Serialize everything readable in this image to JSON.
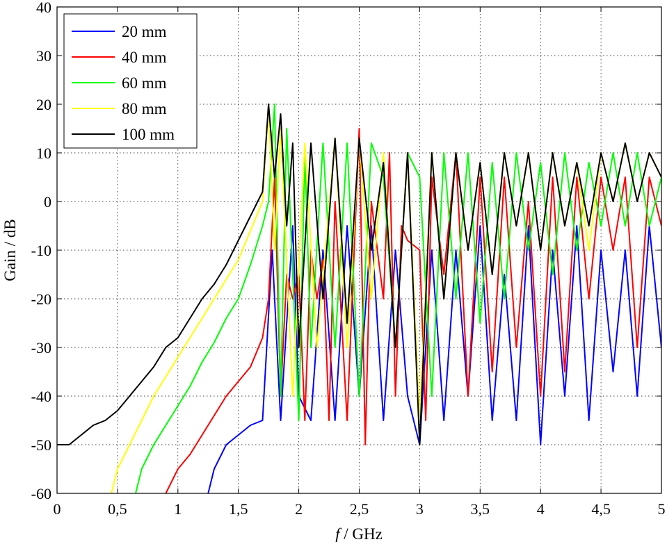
{
  "chart_data": {
    "type": "line",
    "title": "",
    "xlabel_italic": "f",
    "xlabel_rest": " / GHz",
    "ylabel": "Gain / dB",
    "xlim": [
      0,
      5
    ],
    "ylim": [
      -60,
      40
    ],
    "grid": true,
    "legend_placement": "top-left",
    "xticks": [
      0,
      0.5,
      1,
      1.5,
      2,
      2.5,
      3,
      3.5,
      4,
      4.5,
      5
    ],
    "xtick_labels": [
      "0",
      "0,5",
      "1",
      "1,5",
      "2",
      "2,5",
      "3",
      "3,5",
      "4",
      "4,5",
      "5"
    ],
    "yticks": [
      -60,
      -50,
      -40,
      -30,
      -20,
      -10,
      0,
      10,
      20,
      30,
      40
    ],
    "ytick_labels": [
      "-60",
      "-50",
      "-40",
      "-30",
      "-20",
      "-10",
      "0",
      "10",
      "20",
      "30",
      "40"
    ],
    "series": [
      {
        "name": "20 mm",
        "color": "#0000ff",
        "points": [
          [
            1.25,
            -60
          ],
          [
            1.3,
            -55
          ],
          [
            1.4,
            -50
          ],
          [
            1.5,
            -48
          ],
          [
            1.6,
            -46
          ],
          [
            1.7,
            -45
          ],
          [
            1.78,
            -10
          ],
          [
            1.85,
            -45
          ],
          [
            1.95,
            -5
          ],
          [
            2.0,
            -40
          ],
          [
            2.1,
            -45
          ],
          [
            2.2,
            -10
          ],
          [
            2.3,
            -45
          ],
          [
            2.4,
            -5
          ],
          [
            2.5,
            -40
          ],
          [
            2.6,
            -5
          ],
          [
            2.7,
            -45
          ],
          [
            2.8,
            -10
          ],
          [
            2.9,
            -40
          ],
          [
            3.0,
            -50
          ],
          [
            3.1,
            -10
          ],
          [
            3.2,
            -45
          ],
          [
            3.3,
            -10
          ],
          [
            3.4,
            -40
          ],
          [
            3.5,
            -5
          ],
          [
            3.6,
            -45
          ],
          [
            3.7,
            -15
          ],
          [
            3.8,
            -45
          ],
          [
            3.9,
            -5
          ],
          [
            4.0,
            -50
          ],
          [
            4.1,
            -10
          ],
          [
            4.2,
            -40
          ],
          [
            4.3,
            -5
          ],
          [
            4.4,
            -45
          ],
          [
            4.5,
            -10
          ],
          [
            4.6,
            -35
          ],
          [
            4.7,
            -10
          ],
          [
            4.8,
            -40
          ],
          [
            4.9,
            -5
          ],
          [
            5.0,
            -30
          ]
        ]
      },
      {
        "name": "40 mm",
        "color": "#ff0000",
        "points": [
          [
            0.9,
            -60
          ],
          [
            1.0,
            -55
          ],
          [
            1.1,
            -52
          ],
          [
            1.2,
            -48
          ],
          [
            1.3,
            -44
          ],
          [
            1.4,
            -40
          ],
          [
            1.5,
            -37
          ],
          [
            1.6,
            -34
          ],
          [
            1.7,
            -28
          ],
          [
            1.75,
            -20
          ],
          [
            1.8,
            5
          ],
          [
            1.85,
            -40
          ],
          [
            1.9,
            -15
          ],
          [
            1.95,
            -20
          ],
          [
            2.0,
            -15
          ],
          [
            2.05,
            -45
          ],
          [
            2.1,
            -10
          ],
          [
            2.15,
            -20
          ],
          [
            2.2,
            -12
          ],
          [
            2.25,
            -45
          ],
          [
            2.3,
            0
          ],
          [
            2.4,
            -45
          ],
          [
            2.5,
            15
          ],
          [
            2.55,
            -50
          ],
          [
            2.6,
            0
          ],
          [
            2.7,
            -20
          ],
          [
            2.75,
            10
          ],
          [
            2.8,
            -40
          ],
          [
            2.85,
            -5
          ],
          [
            2.9,
            -8
          ],
          [
            3.0,
            -10
          ],
          [
            3.05,
            -45
          ],
          [
            3.1,
            5
          ],
          [
            3.2,
            -15
          ],
          [
            3.3,
            10
          ],
          [
            3.4,
            -40
          ],
          [
            3.5,
            5
          ],
          [
            3.6,
            -35
          ],
          [
            3.7,
            5
          ],
          [
            3.8,
            -30
          ],
          [
            3.9,
            0
          ],
          [
            4.0,
            -40
          ],
          [
            4.1,
            5
          ],
          [
            4.2,
            -35
          ],
          [
            4.3,
            5
          ],
          [
            4.4,
            -20
          ],
          [
            4.5,
            5
          ],
          [
            4.6,
            -10
          ],
          [
            4.7,
            5
          ],
          [
            4.8,
            -30
          ],
          [
            4.9,
            5
          ],
          [
            5.0,
            -5
          ]
        ]
      },
      {
        "name": "60 mm",
        "color": "#00ff00",
        "points": [
          [
            0.65,
            -60
          ],
          [
            0.7,
            -55
          ],
          [
            0.8,
            -50
          ],
          [
            0.9,
            -46
          ],
          [
            1.0,
            -42
          ],
          [
            1.1,
            -38
          ],
          [
            1.2,
            -33
          ],
          [
            1.3,
            -29
          ],
          [
            1.4,
            -24
          ],
          [
            1.5,
            -20
          ],
          [
            1.6,
            -13
          ],
          [
            1.7,
            -5
          ],
          [
            1.75,
            0
          ],
          [
            1.8,
            20
          ],
          [
            1.85,
            -40
          ],
          [
            1.9,
            15
          ],
          [
            2.0,
            -45
          ],
          [
            2.05,
            10
          ],
          [
            2.1,
            -30
          ],
          [
            2.2,
            12
          ],
          [
            2.3,
            -30
          ],
          [
            2.4,
            12
          ],
          [
            2.5,
            -40
          ],
          [
            2.6,
            12
          ],
          [
            2.7,
            5
          ],
          [
            2.8,
            -30
          ],
          [
            2.9,
            10
          ],
          [
            3.0,
            5
          ],
          [
            3.1,
            -40
          ],
          [
            3.2,
            10
          ],
          [
            3.3,
            -20
          ],
          [
            3.4,
            10
          ],
          [
            3.5,
            -25
          ],
          [
            3.6,
            8
          ],
          [
            3.7,
            -20
          ],
          [
            3.8,
            10
          ],
          [
            3.9,
            -10
          ],
          [
            4.0,
            8
          ],
          [
            4.1,
            -15
          ],
          [
            4.2,
            10
          ],
          [
            4.3,
            -10
          ],
          [
            4.4,
            8
          ],
          [
            4.5,
            -5
          ],
          [
            4.6,
            10
          ],
          [
            4.7,
            -5
          ],
          [
            4.8,
            10
          ],
          [
            4.9,
            -5
          ],
          [
            5.0,
            5
          ]
        ]
      },
      {
        "name": "80 mm",
        "color": "#ffff00",
        "points": [
          [
            0.45,
            -60
          ],
          [
            0.5,
            -55
          ],
          [
            0.6,
            -50
          ],
          [
            0.7,
            -45
          ],
          [
            0.8,
            -40
          ],
          [
            0.9,
            -36
          ],
          [
            1.0,
            -32
          ],
          [
            1.1,
            -28
          ],
          [
            1.2,
            -24
          ],
          [
            1.3,
            -20
          ],
          [
            1.4,
            -16
          ],
          [
            1.5,
            -12
          ],
          [
            1.6,
            -6
          ],
          [
            1.7,
            0
          ],
          [
            1.75,
            20
          ],
          [
            1.8,
            -10
          ],
          [
            1.85,
            15
          ],
          [
            1.95,
            -40
          ],
          [
            2.05,
            12
          ],
          [
            2.15,
            -30
          ],
          [
            2.3,
            13
          ],
          [
            2.4,
            -30
          ],
          [
            2.5,
            13
          ],
          [
            2.6,
            -20
          ],
          [
            2.7,
            10
          ],
          [
            2.8,
            -30
          ],
          [
            2.9,
            10
          ],
          [
            3.0,
            -45
          ],
          [
            3.1,
            10
          ],
          [
            3.2,
            -20
          ],
          [
            3.3,
            10
          ],
          [
            3.4,
            -10
          ],
          [
            3.5,
            8
          ],
          [
            3.6,
            -15
          ],
          [
            3.7,
            10
          ],
          [
            3.8,
            -5
          ],
          [
            3.9,
            10
          ],
          [
            4.0,
            -10
          ],
          [
            4.1,
            10
          ],
          [
            4.2,
            -5
          ],
          [
            4.3,
            8
          ],
          [
            4.4,
            -10
          ],
          [
            4.5,
            10
          ],
          [
            4.6,
            0
          ],
          [
            4.7,
            12
          ],
          [
            4.8,
            0
          ],
          [
            4.9,
            10
          ],
          [
            5.0,
            5
          ]
        ]
      },
      {
        "name": "100 mm",
        "color": "#000000",
        "points": [
          [
            0.0,
            -50
          ],
          [
            0.1,
            -50
          ],
          [
            0.2,
            -48
          ],
          [
            0.3,
            -46
          ],
          [
            0.4,
            -45
          ],
          [
            0.5,
            -43
          ],
          [
            0.6,
            -40
          ],
          [
            0.7,
            -37
          ],
          [
            0.8,
            -34
          ],
          [
            0.9,
            -30
          ],
          [
            1.0,
            -28
          ],
          [
            1.1,
            -24
          ],
          [
            1.2,
            -20
          ],
          [
            1.3,
            -17
          ],
          [
            1.4,
            -13
          ],
          [
            1.5,
            -8
          ],
          [
            1.6,
            -3
          ],
          [
            1.7,
            2
          ],
          [
            1.75,
            20
          ],
          [
            1.8,
            5
          ],
          [
            1.85,
            18
          ],
          [
            1.9,
            -5
          ],
          [
            1.95,
            12
          ],
          [
            2.0,
            -30
          ],
          [
            2.1,
            12
          ],
          [
            2.2,
            -20
          ],
          [
            2.3,
            13
          ],
          [
            2.4,
            -25
          ],
          [
            2.5,
            13
          ],
          [
            2.6,
            -10
          ],
          [
            2.7,
            8
          ],
          [
            2.8,
            -30
          ],
          [
            2.9,
            10
          ],
          [
            3.0,
            -50
          ],
          [
            3.1,
            10
          ],
          [
            3.2,
            -20
          ],
          [
            3.3,
            10
          ],
          [
            3.4,
            -10
          ],
          [
            3.5,
            8
          ],
          [
            3.6,
            -15
          ],
          [
            3.7,
            10
          ],
          [
            3.8,
            -5
          ],
          [
            3.9,
            10
          ],
          [
            4.0,
            -10
          ],
          [
            4.1,
            10
          ],
          [
            4.2,
            -5
          ],
          [
            4.3,
            8
          ],
          [
            4.4,
            -5
          ],
          [
            4.5,
            10
          ],
          [
            4.6,
            0
          ],
          [
            4.7,
            12
          ],
          [
            4.8,
            0
          ],
          [
            4.9,
            10
          ],
          [
            5.0,
            5
          ]
        ]
      }
    ]
  }
}
